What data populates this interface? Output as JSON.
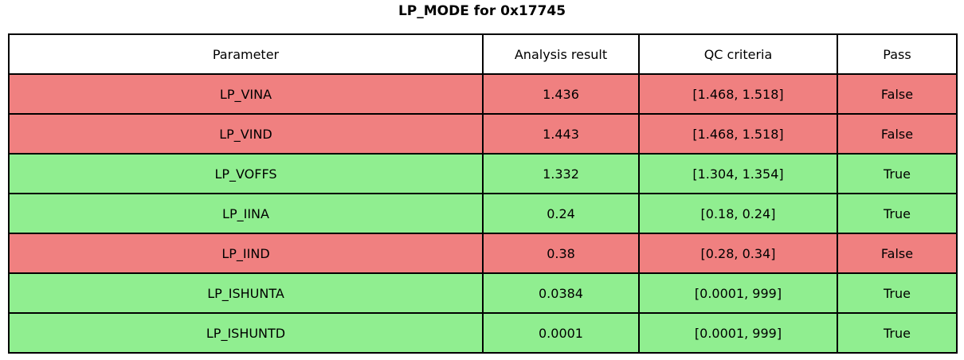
{
  "title": "LP_MODE for 0x17745",
  "chart_data": {
    "type": "table",
    "title": "LP_MODE for 0x17745",
    "columns": [
      "Parameter",
      "Analysis result",
      "QC criteria",
      "Pass"
    ],
    "rows": [
      {
        "parameter": "LP_VINA",
        "analysis_result": "1.436",
        "qc_criteria": "[1.468, 1.518]",
        "pass": "False",
        "status": "fail"
      },
      {
        "parameter": "LP_VIND",
        "analysis_result": "1.443",
        "qc_criteria": "[1.468, 1.518]",
        "pass": "False",
        "status": "fail"
      },
      {
        "parameter": "LP_VOFFS",
        "analysis_result": "1.332",
        "qc_criteria": "[1.304, 1.354]",
        "pass": "True",
        "status": "pass"
      },
      {
        "parameter": "LP_IINA",
        "analysis_result": "0.24",
        "qc_criteria": "[0.18, 0.24]",
        "pass": "True",
        "status": "pass"
      },
      {
        "parameter": "LP_IIND",
        "analysis_result": "0.38",
        "qc_criteria": "[0.28, 0.34]",
        "pass": "False",
        "status": "fail"
      },
      {
        "parameter": "LP_ISHUNTA",
        "analysis_result": "0.0384",
        "qc_criteria": "[0.0001, 999]",
        "pass": "True",
        "status": "pass"
      },
      {
        "parameter": "LP_ISHUNTD",
        "analysis_result": "0.0001",
        "qc_criteria": "[0.0001, 999]",
        "pass": "True",
        "status": "pass"
      }
    ],
    "colors": {
      "pass_row": "#90ee90",
      "fail_row": "#f08080",
      "border": "#000000",
      "header_bg": "#ffffff"
    },
    "layout": {
      "legend": false,
      "grid": true
    }
  }
}
